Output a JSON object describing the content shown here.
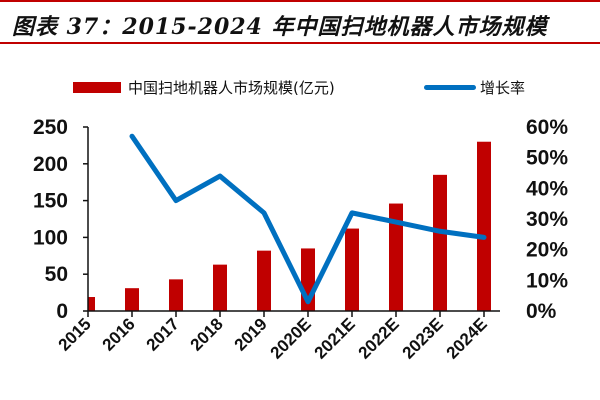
{
  "title": "图表 37：2015-2024 年中国扫地机器人市场规模",
  "legend": {
    "bar_label": "中国扫地机器人市场规模(亿元)",
    "line_label": "增长率"
  },
  "colors": {
    "bar": "#c00000",
    "line": "#0070c0",
    "rule": "#c00000"
  },
  "chart_data": {
    "type": "bar+line",
    "title": "图表 37：2015-2024 年中国扫地机器人市场规模",
    "categories": [
      "2015",
      "2016",
      "2017",
      "2018",
      "2019",
      "2020E",
      "2021E",
      "2022E",
      "2023E",
      "2024E"
    ],
    "series": [
      {
        "name": "中国扫地机器人市场规模(亿元)",
        "type": "bar",
        "axis": "left",
        "values": [
          19,
          31,
          43,
          63,
          82,
          85,
          112,
          146,
          185,
          230
        ]
      },
      {
        "name": "增长率",
        "type": "line",
        "axis": "right",
        "values": [
          null,
          57,
          36,
          44,
          32,
          3,
          32,
          29,
          26,
          24
        ]
      }
    ],
    "left_axis": {
      "ylim": [
        0,
        250
      ],
      "ticks": [
        "0",
        "50",
        "100",
        "150",
        "200",
        "250"
      ]
    },
    "right_axis": {
      "ylim": [
        0,
        60
      ],
      "ticks": [
        "0%",
        "10%",
        "20%",
        "30%",
        "40%",
        "50%",
        "60%"
      ]
    },
    "xlabel": "",
    "ylabel": "",
    "grid": false,
    "legend_position": "top"
  }
}
